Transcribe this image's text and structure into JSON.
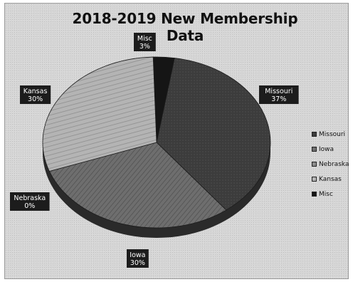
{
  "chart_data": {
    "type": "pie",
    "title": "2018-2019 New Membership Data",
    "categories": [
      "Missouri",
      "Iowa",
      "Nebraska",
      "Kansas",
      "Misc"
    ],
    "values": [
      37,
      30,
      0,
      30,
      3
    ],
    "data_labels": [
      {
        "name": "Missouri",
        "value": "37%"
      },
      {
        "name": "Iowa",
        "value": "30%"
      },
      {
        "name": "Nebraska",
        "value": "0%"
      },
      {
        "name": "Kansas",
        "value": "30%"
      },
      {
        "name": "Misc",
        "value": "3%"
      }
    ],
    "legend": {
      "position": "right",
      "entries": [
        "Missouri",
        "Iowa",
        "Nebraska",
        "Kansas",
        "Misc"
      ]
    },
    "colors": {
      "Missouri": "#3c3c3c",
      "Iowa": "#6e6e6e",
      "Nebraska": "#8c8c8c",
      "Kansas": "#b4b4b4",
      "Misc": "#151515"
    },
    "style": "3d-pie"
  }
}
